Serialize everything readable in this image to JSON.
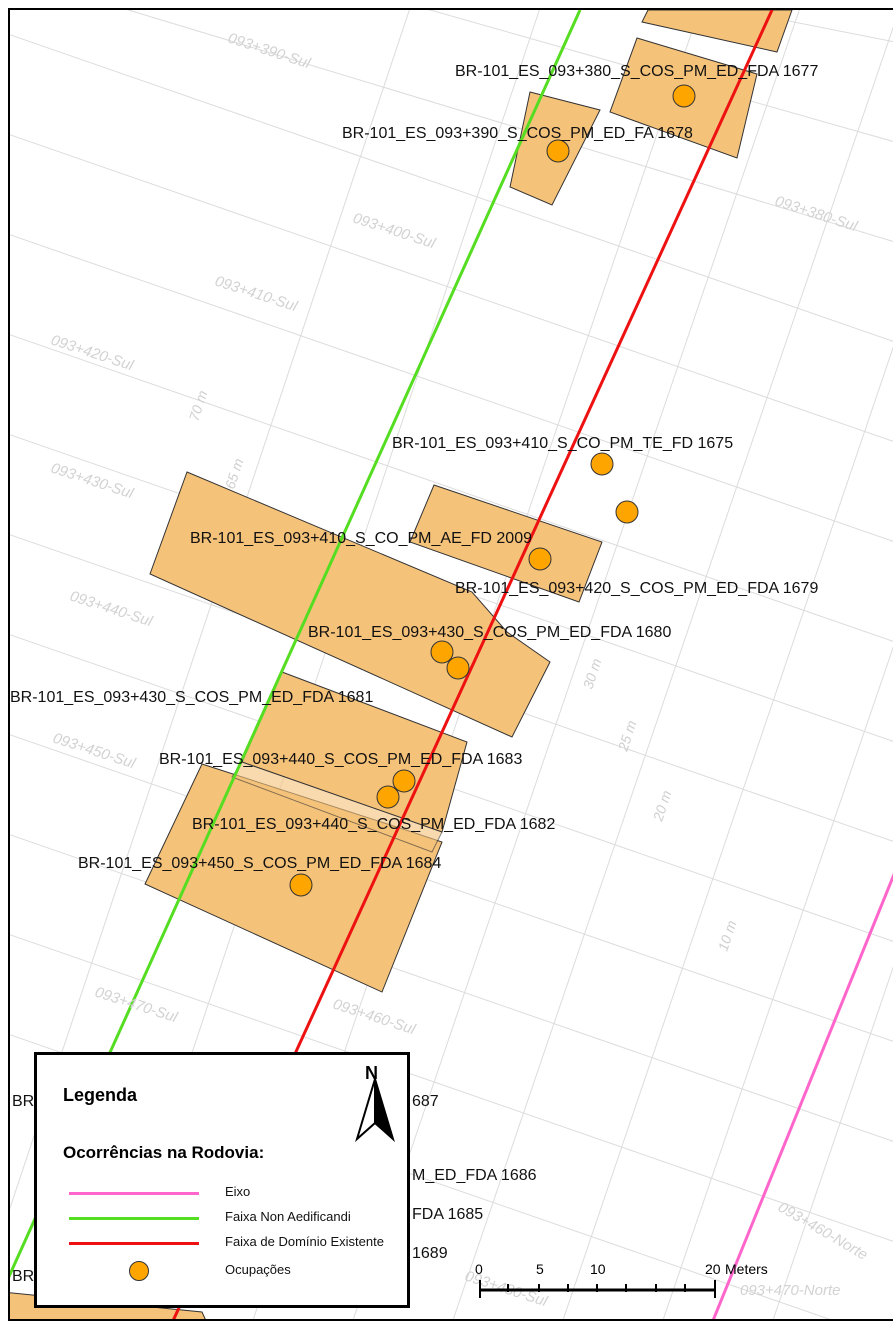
{
  "colors": {
    "eixo": "#ff66cc",
    "faixa_non_aedificandi": "#55dd22",
    "faixa_dominio": "#ee1111",
    "ocupacao": "#ffa500",
    "parcel_fill": "#f5c27a"
  },
  "occurrence_labels": [
    "BR-101_ES_093+380_S_COS_PM_ED_FDA 1677",
    "BR-101_ES_093+390_S_COS_PM_ED_FA 1678",
    "BR-101_ES_093+410_S_CO_PM_TE_FD 1675",
    "BR-101_ES_093+410_S_CO_PM_AE_FD 2009",
    "BR-101_ES_093+420_S_COS_PM_ED_FDA 1679",
    "BR-101_ES_093+430_S_COS_PM_ED_FDA 1680",
    "BR-101_ES_093+430_S_COS_PM_ED_FDA 1681",
    "BR-101_ES_093+440_S_COS_PM_ED_FDA 1683",
    "BR-101_ES_093+440_S_COS_PM_ED_FDA 1682",
    "BR-101_ES_093+450_S_COS_PM_ED_FDA 1684"
  ],
  "partial_labels": [
    "BR",
    "687",
    "M_ED_FDA 1686",
    "FDA 1685",
    "BR",
    "1689"
  ],
  "station_labels": [
    "093+390-Sul",
    "093+380-Sul",
    "093+400-Sul",
    "093+410-Sul",
    "093+420-Sul",
    "093+430-Sul",
    "093+440-Sul",
    "093+450-Sul",
    "093+470-Sul",
    "093+460-Sul",
    "093+460-Norte",
    "093+470-Norte",
    "093+480-Sul"
  ],
  "distance_labels": [
    "70 m",
    "65 m",
    "30 m",
    "25 m",
    "20 m",
    "10 m"
  ],
  "legend": {
    "title": "Legenda",
    "subtitle": "Ocorrências na Rodovia:",
    "items": [
      {
        "label": "Eixo",
        "color": "#ff66cc",
        "type": "line"
      },
      {
        "label": "Faixa Non Aedificandi",
        "color": "#55dd22",
        "type": "line"
      },
      {
        "label": "Faixa de Domínio Existente",
        "color": "#ee1111",
        "type": "line"
      },
      {
        "label": "Ocupações",
        "color": "#ffa500",
        "type": "point"
      }
    ]
  },
  "north_arrow": {
    "label": "N"
  },
  "scale_bar": {
    "ticks": [
      "0",
      "5",
      "10",
      "20"
    ],
    "unit": "Meters"
  }
}
